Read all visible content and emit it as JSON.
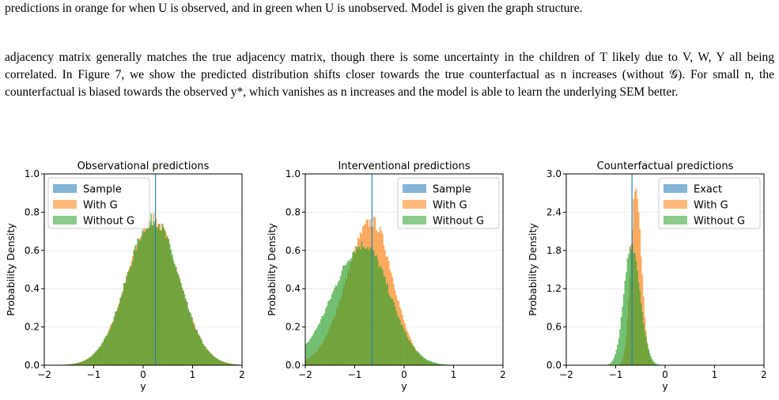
{
  "text": {
    "caption_tail": "predictions in orange for when U is observed, and in green when U is unobserved. Model is given the graph structure.",
    "paragraph": "adjacency matrix generally matches the true adjacency matrix, though there is some uncertainty in the children of T likely due to V, W, Y all being correlated. In Figure 7, we show the predicted distribution shifts closer towards the true counterfactual as n increases (without 𝒢). For small n, the counterfactual is biased towards the observed y*, which vanishes as n increases and the model is able to learn the underlying SEM better."
  },
  "colors": {
    "blue": "#1f77b4",
    "orange": "#ff7f0e",
    "green": "#2ca02c"
  },
  "chart_data": [
    {
      "type": "bar",
      "title": "Observational predictions",
      "xlabel": "y",
      "ylabel": "Probability Density",
      "xlim": [
        -2,
        2
      ],
      "ylim": [
        0,
        1.0
      ],
      "xticks": [
        "−2",
        "−1",
        "0",
        "1",
        "2"
      ],
      "yticks": [
        "0.0",
        "0.2",
        "0.4",
        "0.6",
        "0.8",
        "1.0"
      ],
      "ytick_values": [
        0,
        0.2,
        0.4,
        0.6,
        0.8,
        1.0
      ],
      "legend_position": "top-left",
      "reference_line_x": 0.25,
      "series": [
        {
          "name": "Sample",
          "color": "blue",
          "shape": "spike",
          "center": 0.25,
          "peak": 1.0
        },
        {
          "name": "With G",
          "color": "orange",
          "shape": "gauss",
          "center": 0.2,
          "peak": 0.76,
          "sigma_left": 0.53,
          "sigma_right": 0.52
        },
        {
          "name": "Without G",
          "color": "green",
          "shape": "gauss",
          "center": 0.2,
          "peak": 0.76,
          "sigma_left": 0.53,
          "sigma_right": 0.52
        }
      ]
    },
    {
      "type": "bar",
      "title": "Interventional predictions",
      "xlabel": "y",
      "ylabel": "Probability Density",
      "xlim": [
        -2,
        2
      ],
      "ylim": [
        0,
        1.0
      ],
      "xticks": [
        "−2",
        "−1",
        "0",
        "1",
        "2"
      ],
      "yticks": [
        "0.0",
        "0.2",
        "0.4",
        "0.6",
        "0.8",
        "1.0"
      ],
      "ytick_values": [
        0,
        0.2,
        0.4,
        0.6,
        0.8,
        1.0
      ],
      "legend_position": "top-right",
      "reference_line_x": -0.65,
      "series": [
        {
          "name": "Sample",
          "color": "blue",
          "shape": "spike",
          "center": -0.65,
          "peak": 1.0
        },
        {
          "name": "With G",
          "color": "orange",
          "shape": "gauss",
          "center": -0.65,
          "peak": 0.75,
          "sigma_left": 0.52,
          "sigma_right": 0.42
        },
        {
          "name": "Without G",
          "color": "green",
          "shape": "gauss",
          "center": -0.82,
          "peak": 0.63,
          "sigma_left": 0.62,
          "sigma_right": 0.52
        }
      ]
    },
    {
      "type": "bar",
      "title": "Counterfactual predictions",
      "xlabel": "y",
      "ylabel": "Probability Density",
      "xlim": [
        -2,
        2
      ],
      "ylim": [
        0,
        3.0
      ],
      "xticks": [
        "−2",
        "−1",
        "0",
        "1",
        "2"
      ],
      "yticks": [
        "0.0",
        "0.6",
        "1.2",
        "1.8",
        "2.4",
        "3.0"
      ],
      "ytick_values": [
        0,
        0.6,
        1.2,
        1.8,
        2.4,
        3.0
      ],
      "legend_position": "top-right",
      "reference_line_x": -0.67,
      "series": [
        {
          "name": "Exact",
          "color": "blue",
          "shape": "spike",
          "center": -0.67,
          "peak": 3.0
        },
        {
          "name": "With G",
          "color": "orange",
          "shape": "gauss",
          "center": -0.6,
          "peak": 2.7,
          "sigma_left": 0.1,
          "sigma_right": 0.12
        },
        {
          "name": "Without G",
          "color": "green",
          "shape": "gauss",
          "center": -0.68,
          "peak": 1.9,
          "sigma_left": 0.15,
          "sigma_right": 0.17
        }
      ]
    }
  ]
}
